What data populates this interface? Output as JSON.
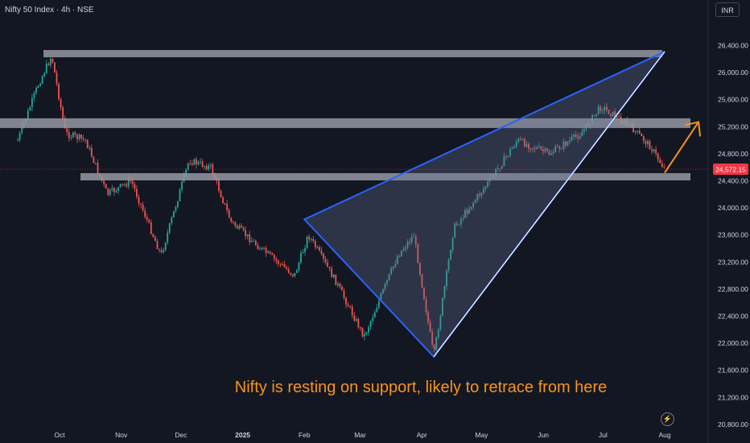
{
  "header": {
    "symbol": "Nifty 50 Index · 4h · NSE",
    "currency": "INR"
  },
  "annotation": "Nifty is resting on support, likely to retrace from here",
  "icons": {
    "goto_realtime": "lightning-icon"
  },
  "colors": {
    "background": "#131722",
    "up": "#26a69a",
    "down": "#ef5350",
    "support_band": "#9598a1",
    "trendline": "#2962ff",
    "arrow": "#f7931e",
    "price_tag": "#f23645",
    "axis_text": "#d1d4dc"
  },
  "chart_data": {
    "type": "candlestick",
    "title": "Nifty 50 Index",
    "interval": "4h",
    "exchange": "NSE",
    "y_axis": {
      "side": "right",
      "range": [
        20600,
        26700
      ],
      "ticks": [
        "26,400.00",
        "26,000.00",
        "25,600.00",
        "25,200.00",
        "24,800.00",
        "24,400.00",
        "24,000.00",
        "23,600.00",
        "23,200.00",
        "22,800.00",
        "22,400.00",
        "22,000.00",
        "21,600.00",
        "21,200.00",
        "20,800.00"
      ]
    },
    "x_axis": {
      "ticks": [
        {
          "label": "Oct",
          "date": "2024-10-01"
        },
        {
          "label": "Nov",
          "date": "2024-11-01"
        },
        {
          "label": "Dec",
          "date": "2024-12-01"
        },
        {
          "label": "2025",
          "date": "2025-01-01"
        },
        {
          "label": "Feb",
          "date": "2025-02-01"
        },
        {
          "label": "Mar",
          "date": "2025-03-01"
        },
        {
          "label": "Apr",
          "date": "2025-04-01"
        },
        {
          "label": "May",
          "date": "2025-05-01"
        },
        {
          "label": "Jun",
          "date": "2025-06-01"
        },
        {
          "label": "Jul",
          "date": "2025-07-01"
        },
        {
          "label": "Aug",
          "date": "2025-08-01"
        }
      ]
    },
    "last_price": 24572.15,
    "last_price_label": "24,572.15",
    "price_path": [
      {
        "date": "2024-09-10",
        "close": 25000
      },
      {
        "date": "2024-09-20",
        "close": 25800
      },
      {
        "date": "2024-09-27",
        "close": 26250
      },
      {
        "date": "2024-10-04",
        "close": 25100
      },
      {
        "date": "2024-10-14",
        "close": 25000
      },
      {
        "date": "2024-10-25",
        "close": 24200
      },
      {
        "date": "2024-11-06",
        "close": 24400
      },
      {
        "date": "2024-11-21",
        "close": 23300
      },
      {
        "date": "2024-12-05",
        "close": 24700
      },
      {
        "date": "2024-12-16",
        "close": 24600
      },
      {
        "date": "2024-12-26",
        "close": 23800
      },
      {
        "date": "2025-01-10",
        "close": 23400
      },
      {
        "date": "2025-01-27",
        "close": 23000
      },
      {
        "date": "2025-02-03",
        "close": 23600
      },
      {
        "date": "2025-02-17",
        "close": 22900
      },
      {
        "date": "2025-03-03",
        "close": 22100
      },
      {
        "date": "2025-03-20",
        "close": 23300
      },
      {
        "date": "2025-03-28",
        "close": 23600
      },
      {
        "date": "2025-04-07",
        "close": 21800
      },
      {
        "date": "2025-04-17",
        "close": 23700
      },
      {
        "date": "2025-05-05",
        "close": 24400
      },
      {
        "date": "2025-05-19",
        "close": 25000
      },
      {
        "date": "2025-06-04",
        "close": 24800
      },
      {
        "date": "2025-06-20",
        "close": 25100
      },
      {
        "date": "2025-06-30",
        "close": 25500
      },
      {
        "date": "2025-07-15",
        "close": 25200
      },
      {
        "date": "2025-07-25",
        "close": 24900
      },
      {
        "date": "2025-08-01",
        "close": 24572
      }
    ],
    "drawings": [
      {
        "kind": "band",
        "label": "resistance",
        "price": 26280
      },
      {
        "kind": "band",
        "label": "mid-band",
        "price": 25270
      },
      {
        "kind": "band",
        "label": "support",
        "price": 24460
      },
      {
        "kind": "triangle",
        "points": [
          {
            "date": "2025-02-01",
            "price": 23830
          },
          {
            "date": "2025-04-07",
            "price": 21800
          },
          {
            "date": "2025-08-01",
            "price": 26310
          }
        ]
      },
      {
        "kind": "arrow",
        "from": {
          "date": "2025-08-01",
          "price": 24520
        },
        "to": {
          "date": "2025-08-18",
          "price": 25270
        }
      }
    ],
    "grid": false,
    "legend": "none"
  }
}
